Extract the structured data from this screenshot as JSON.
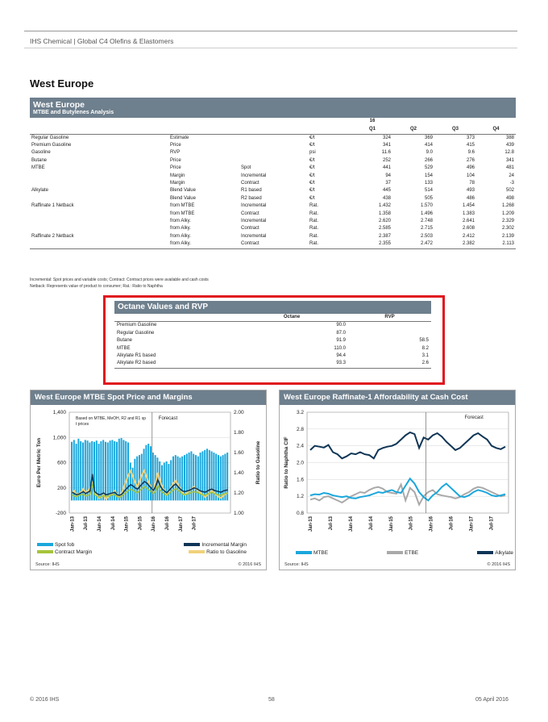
{
  "header": {
    "text": "IHS Chemical | Global C4 Olefins & Elastomers"
  },
  "page_title": "West Europe",
  "table1": {
    "title": "West Europe",
    "subtitle": "MTBE and Butylenes Analysis",
    "year": "16",
    "quarters": [
      "Q1",
      "Q2",
      "Q3",
      "Q4"
    ],
    "rows": [
      [
        "Regular Gasoline",
        "Estimate",
        "",
        "€/t",
        "324",
        "369",
        "373",
        "388"
      ],
      [
        "Premium Gasoline",
        "Price",
        "",
        "€/t",
        "341",
        "414",
        "415",
        "439"
      ],
      [
        "Gasoline",
        "RVP",
        "",
        "psi",
        "11.6",
        "9.0",
        "9.6",
        "12.8"
      ],
      [
        "Butane",
        "Price",
        "",
        "€/t",
        "252",
        "266",
        "276",
        "341"
      ],
      [
        "MTBE",
        "Price",
        "Spot",
        "€/t",
        "441",
        "529",
        "496",
        "481"
      ],
      [
        "",
        "Margin",
        "Incremental",
        "€/t",
        "94",
        "154",
        "104",
        "24"
      ],
      [
        "",
        "Margin",
        "Contract",
        "€/t",
        "37",
        "133",
        "78",
        "-3"
      ],
      [
        "Alkylate",
        "Blend Value",
        "R1 based",
        "€/t",
        "445",
        "514",
        "493",
        "502"
      ],
      [
        "",
        "Blend Value",
        "R2 based",
        "€/t",
        "438",
        "505",
        "486",
        "498"
      ],
      [
        "Raffinate 1 Netback",
        "from MTBE",
        "Incremental",
        "Rat.",
        "1.432",
        "1.570",
        "1.454",
        "1.268"
      ],
      [
        "",
        "from MTBE",
        "Contract",
        "Rat.",
        "1.358",
        "1.496",
        "1.383",
        "1.209"
      ],
      [
        "",
        "from Alky.",
        "Incremental",
        "Rat.",
        "2.620",
        "2.748",
        "2.641",
        "2.329"
      ],
      [
        "",
        "from Alky.",
        "Contract",
        "Rat.",
        "2.585",
        "2.715",
        "2.608",
        "2.302"
      ],
      [
        "Raffinate 2 Netback",
        "from Alky.",
        "Incremental",
        "Rat.",
        "2.387",
        "2.503",
        "2.412",
        "2.139"
      ],
      [
        "",
        "from Alky.",
        "Contract",
        "Rat.",
        "2.355",
        "2.472",
        "2.382",
        "2.113"
      ]
    ],
    "footnote1": "Incremental: Spot prices and variable costs; Contract: Contract prices were available and cash costs",
    "footnote2": "Netback: Represents value of product to consumer; Rat.: Ratio to Naphtha"
  },
  "table2": {
    "title": "Octane Values and RVP",
    "col_octane": "Octane",
    "col_rvp": "RVP",
    "rows": [
      [
        "Premium Gasoline",
        "90.0",
        ""
      ],
      [
        "Regular Gasoline",
        "87.0",
        ""
      ],
      [
        "Butane",
        "91.9",
        "58.5"
      ],
      [
        "MTBE",
        "110.0",
        "8.2"
      ],
      [
        "Alkylate R1 based",
        "94.4",
        "3.1"
      ],
      [
        "Alkylate R2 based",
        "93.3",
        "2.6"
      ]
    ]
  },
  "chart_data": [
    {
      "type": "bar",
      "title": "West Europe MTBE Spot Price and Margins",
      "annotation": "Based on MTBE, MeOH, R2 and R1 spot prices",
      "forecast_label": "Forecast",
      "ylabel": "Euro Per Metric Ton",
      "y2label": "Ratio to Gasoline",
      "ylim": [
        -200,
        1400
      ],
      "y2lim": [
        1.0,
        2.0
      ],
      "yticks": [
        "1,400",
        "1,000",
        "600",
        "200",
        "-200"
      ],
      "y2ticks": [
        "2.00",
        "1.80",
        "1.60",
        "1.40",
        "1.20",
        "1.00"
      ],
      "xticks": [
        "Jan-13",
        "Jul-13",
        "Jan-14",
        "Jul-14",
        "Jan-15",
        "Jul-15",
        "Jan-16",
        "Jul-16",
        "Jan-17",
        "Jul-17"
      ],
      "source": "Source: IHS",
      "copyright": "© 2016 IHS",
      "colors": {
        "spot": "#1aa7dc",
        "incremental": "#0e3556",
        "contract": "#a6c43a",
        "ratio": "#f1d27a"
      },
      "series": [
        {
          "name": "Spot fob",
          "values": [
            930,
            960,
            900,
            980,
            940,
            920,
            960,
            950,
            920,
            940,
            930,
            950,
            900,
            940,
            960,
            930,
            920,
            950,
            960,
            940,
            930,
            980,
            990,
            960,
            940,
            920,
            600,
            520,
            660,
            700,
            720,
            740,
            820,
            880,
            900,
            860,
            760,
            720,
            680,
            620,
            560,
            600,
            620,
            580,
            640,
            700,
            720,
            700,
            680,
            700,
            720,
            740,
            760,
            780,
            740,
            720,
            700,
            760,
            780,
            800,
            820,
            800,
            780,
            760,
            740,
            720,
            700,
            720,
            740,
            760
          ]
        },
        {
          "name": "Incremental Margin",
          "values": [
            130,
            110,
            90,
            100,
            120,
            140,
            110,
            130,
            150,
            420,
            140,
            110,
            90,
            100,
            120,
            90,
            100,
            110,
            120,
            130,
            90,
            80,
            100,
            140,
            180,
            220,
            250,
            230,
            200,
            180,
            220,
            260,
            300,
            280,
            240,
            200,
            160,
            220,
            330,
            240,
            180,
            150,
            120,
            160,
            200,
            240,
            260,
            220,
            180,
            150,
            140,
            150,
            160,
            180,
            200,
            190,
            170,
            150,
            140,
            130,
            150,
            170,
            180,
            160,
            150,
            140,
            130,
            150,
            160,
            170
          ]
        },
        {
          "name": "Contract Margin",
          "values": [
            90,
            70,
            60,
            80,
            90,
            100,
            70,
            80,
            100,
            260,
            90,
            70,
            50,
            60,
            80,
            60,
            70,
            80,
            90,
            90,
            60,
            50,
            70,
            100,
            130,
            160,
            180,
            160,
            140,
            120,
            160,
            190,
            220,
            200,
            170,
            140,
            110,
            150,
            240,
            170,
            130,
            100,
            80,
            110,
            140,
            170,
            190,
            160,
            130,
            100,
            90,
            100,
            110,
            130,
            140,
            130,
            120,
            100,
            90,
            80,
            100,
            120,
            130,
            110,
            100,
            90,
            80,
            100,
            110,
            120
          ]
        },
        {
          "name": "Ratio to Gasoline",
          "values": [
            1.2,
            1.22,
            1.18,
            1.19,
            1.21,
            1.24,
            1.2,
            1.22,
            1.25,
            1.3,
            1.22,
            1.18,
            1.15,
            1.16,
            1.18,
            1.14,
            1.16,
            1.18,
            1.2,
            1.22,
            1.18,
            1.16,
            1.2,
            1.26,
            1.32,
            1.38,
            1.42,
            1.36,
            1.3,
            1.26,
            1.32,
            1.38,
            1.42,
            1.36,
            1.3,
            1.26,
            1.22,
            1.3,
            1.4,
            1.32,
            1.26,
            1.22,
            1.18,
            1.22,
            1.26,
            1.3,
            1.32,
            1.28,
            1.24,
            1.2,
            1.18,
            1.2,
            1.22,
            1.24,
            1.26,
            1.24,
            1.22,
            1.2,
            1.18,
            1.16,
            1.18,
            1.2,
            1.22,
            1.2,
            1.18,
            1.16,
            1.15,
            1.17,
            1.19,
            1.2
          ]
        }
      ],
      "legend": [
        "Spot fob",
        "Incremental Margin",
        "Contract Margin",
        "Ratio to Gasoline"
      ]
    },
    {
      "type": "line",
      "title": "West Europe Raffinate-1 Affordability at Cash Cost",
      "forecast_label": "Forecast",
      "ylabel": "Ratio to Naphtha CIF",
      "ylim": [
        0.8,
        3.2
      ],
      "yticks": [
        "3.2",
        "2.8",
        "2.4",
        "2.0",
        "1.6",
        "1.2",
        "0.8"
      ],
      "xticks": [
        "Jan-13",
        "Jul-13",
        "Jan-14",
        "Jul-14",
        "Jan-15",
        "Jul-15",
        "Jan-16",
        "Jul-16",
        "Jan-17",
        "Jul-17"
      ],
      "source": "Source: IHS",
      "copyright": "© 2016 IHS",
      "colors": {
        "mtbe": "#1aa7dc",
        "etbe": "#a9a9a9",
        "alkylate": "#0e3556"
      },
      "series": [
        {
          "name": "MTBE",
          "values": [
            1.22,
            1.25,
            1.24,
            1.28,
            1.26,
            1.22,
            1.2,
            1.18,
            1.2,
            1.16,
            1.15,
            1.18,
            1.2,
            1.22,
            1.26,
            1.3,
            1.28,
            1.32,
            1.35,
            1.3,
            1.28,
            1.45,
            1.62,
            1.5,
            1.3,
            1.18,
            1.1,
            1.22,
            1.3,
            1.42,
            1.5,
            1.4,
            1.3,
            1.2,
            1.18,
            1.22,
            1.3,
            1.35,
            1.32,
            1.28,
            1.22,
            1.2,
            1.22,
            1.25
          ]
        },
        {
          "name": "ETBE",
          "values": [
            1.12,
            1.15,
            1.1,
            1.18,
            1.2,
            1.15,
            1.1,
            1.05,
            1.12,
            1.2,
            1.25,
            1.3,
            1.28,
            1.35,
            1.4,
            1.42,
            1.38,
            1.3,
            1.28,
            1.26,
            1.48,
            1.1,
            1.4,
            1.3,
            1.0,
            1.2,
            1.3,
            1.35,
            1.25,
            1.22,
            1.2,
            1.18,
            1.15,
            1.18,
            1.25,
            1.3,
            1.38,
            1.42,
            1.4,
            1.35,
            1.3,
            1.25,
            1.2,
            1.22
          ]
        },
        {
          "name": "Alkylate",
          "values": [
            2.3,
            2.4,
            2.38,
            2.36,
            2.42,
            2.25,
            2.2,
            2.1,
            2.15,
            2.22,
            2.2,
            2.25,
            2.2,
            2.18,
            2.1,
            2.3,
            2.35,
            2.38,
            2.4,
            2.45,
            2.55,
            2.65,
            2.72,
            2.68,
            2.35,
            2.6,
            2.55,
            2.65,
            2.7,
            2.62,
            2.5,
            2.4,
            2.3,
            2.35,
            2.45,
            2.55,
            2.65,
            2.7,
            2.62,
            2.55,
            2.4,
            2.35,
            2.32,
            2.38
          ]
        }
      ],
      "legend": [
        "MTBE",
        "ETBE",
        "Alkylate"
      ]
    }
  ],
  "footer": {
    "left": "© 2016 IHS",
    "center": "58",
    "right": "05 April 2016"
  }
}
